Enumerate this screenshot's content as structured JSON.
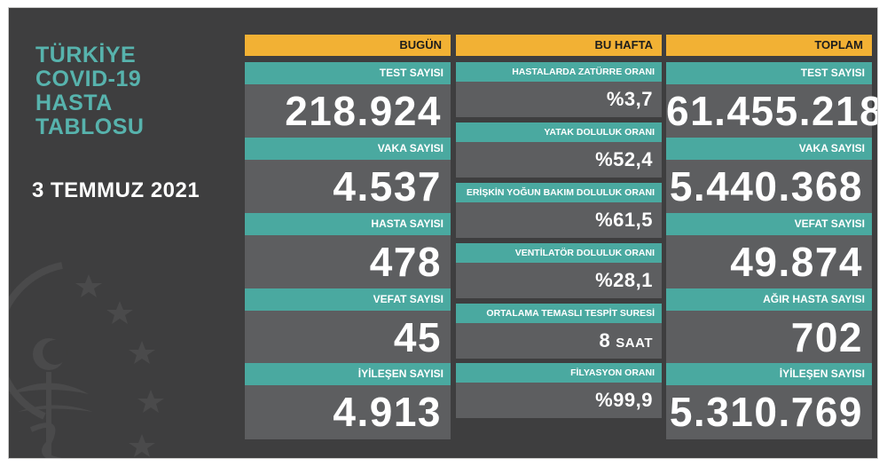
{
  "title": {
    "line1": "TÜRKİYE",
    "line2": "COVID-19",
    "line3": "HASTA",
    "line4": "TABLOSU"
  },
  "date": "3 TEMMUZ 2021",
  "columns": {
    "today": {
      "header": "BUGÜN",
      "items": [
        {
          "label": "TEST SAYISI",
          "value": "218.924"
        },
        {
          "label": "VAKA SAYISI",
          "value": "4.537"
        },
        {
          "label": "HASTA SAYISI",
          "value": "478"
        },
        {
          "label": "VEFAT SAYISI",
          "value": "45"
        },
        {
          "label": "İYİLEŞEN SAYISI",
          "value": "4.913"
        }
      ]
    },
    "week": {
      "header": "BU HAFTA",
      "items": [
        {
          "label": "HASTALARDA ZATÜRRE ORANI",
          "value": "%3,7",
          "unit": ""
        },
        {
          "label": "YATAK DOLULUK ORANI",
          "value": "%52,4",
          "unit": ""
        },
        {
          "label": "ERİŞKİN YOĞUN BAKIM DOLULUK ORANI",
          "value": "%61,5",
          "unit": ""
        },
        {
          "label": "VENTİLATÖR DOLULUK ORANI",
          "value": "%28,1",
          "unit": ""
        },
        {
          "label": "ORTALAMA TEMASLI TESPİT SURESİ",
          "value": "8",
          "unit": "SAAT"
        },
        {
          "label": "FİLYASYON ORANI",
          "value": "%99,9",
          "unit": ""
        }
      ]
    },
    "total": {
      "header": "TOPLAM",
      "items": [
        {
          "label": "TEST SAYISI",
          "value": "61.455.218"
        },
        {
          "label": "VAKA SAYISI",
          "value": "5.440.368"
        },
        {
          "label": "VEFAT SAYISI",
          "value": "49.874"
        },
        {
          "label": "AĞIR HASTA SAYISI",
          "value": "702"
        },
        {
          "label": "İYİLEŞEN SAYISI",
          "value": "5.310.769"
        }
      ]
    }
  },
  "colors": {
    "background": "#3e3e3f",
    "header": "#f2b134",
    "label": "#4aa9a0",
    "value_box": "#5d5e60",
    "title": "#57b3ad"
  },
  "icons": {
    "emblem": "ministry-of-health-emblem"
  }
}
